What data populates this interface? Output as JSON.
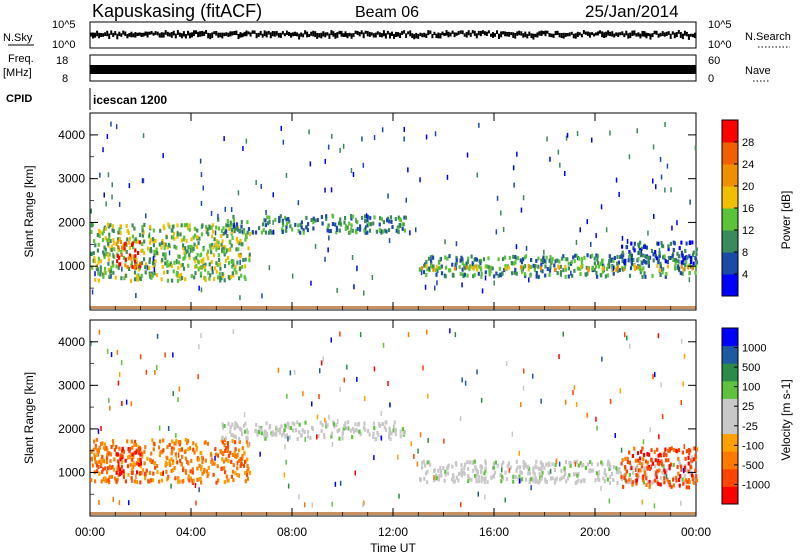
{
  "header": {
    "station": "Kapuskasing (fitACF)",
    "beam": "Beam 06",
    "date": "25/Jan/2014"
  },
  "strips": {
    "nsky_label": "N.Sky",
    "nsky_top": "10^5",
    "nsky_bottom": "10^0",
    "nsearch_label": "N.Search",
    "nsearch_top": "10^5",
    "nsearch_bottom": "10^0",
    "freq_label": "Freq.",
    "freq_unit": "[MHz]",
    "freq_top": "18",
    "freq_bottom": "8",
    "nave_label": "Nave",
    "nave_top": "60",
    "nave_bottom": "0",
    "cpid_label": "CPID",
    "cpid_value": "icescan 1200"
  },
  "colors": {
    "power": [
      "#0000ff",
      "#1c4aa8",
      "#3a8a5a",
      "#5cc23a",
      "#f0c000",
      "#f09000",
      "#f06000",
      "#ff0000"
    ],
    "velocity": [
      "#ff0000",
      "#ff4500",
      "#ff7800",
      "#ffa000",
      "#c8c8c8",
      "#c8c8c8",
      "#60c040",
      "#2e8a4a",
      "#1e5aa0",
      "#0000ff"
    ],
    "ground": "#c8c8c8"
  },
  "chart_data": [
    {
      "type": "heatmap",
      "title": "",
      "xlabel": "Time UT",
      "ylabel": "Slant Range [km]",
      "xlim": [
        "00:00",
        "24:00"
      ],
      "ylim": [
        0,
        4500
      ],
      "x_ticks": [
        "00:00",
        "04:00",
        "08:00",
        "12:00",
        "16:00",
        "20:00",
        "00:00"
      ],
      "y_ticks": [
        "1000",
        "2000",
        "3000",
        "4000"
      ],
      "colorbar_label": "Power [dB]",
      "colorbar_ticks": [
        "4",
        "8",
        "12",
        "16",
        "20",
        "24",
        "28"
      ],
      "colorbar_range": [
        0,
        30
      ],
      "features": [
        {
          "t_start": 0.0,
          "t_end": 6.3,
          "range_start": 700,
          "range_end": 2000,
          "power_dB": 14
        },
        {
          "t_start": 1.0,
          "t_end": 2.0,
          "range_start": 1000,
          "range_end": 1600,
          "power_dB": 28
        },
        {
          "t_start": 5.0,
          "t_end": 12.5,
          "range_start": 1800,
          "range_end": 2200,
          "power_dB": 12
        },
        {
          "t_start": 13.0,
          "t_end": 24.0,
          "range_start": 800,
          "range_end": 1300,
          "power_dB": 10
        },
        {
          "t_start": 13.0,
          "t_end": 24.0,
          "range_start": 950,
          "range_end": 1050,
          "power_dB": 20
        },
        {
          "t_start": 21.0,
          "t_end": 24.0,
          "range_start": 1100,
          "range_end": 1600,
          "power_dB": 8
        }
      ]
    },
    {
      "type": "heatmap",
      "title": "",
      "xlabel": "Time UT",
      "ylabel": "Slant Range [km]",
      "xlim": [
        "00:00",
        "24:00"
      ],
      "ylim": [
        0,
        4500
      ],
      "x_ticks": [
        "00:00",
        "04:00",
        "08:00",
        "12:00",
        "16:00",
        "20:00",
        "00:00"
      ],
      "y_ticks": [
        "1000",
        "2000",
        "3000",
        "4000"
      ],
      "colorbar_label": "Velocity [m s-1]",
      "colorbar_ticks": [
        "1000",
        "500",
        "100",
        "25",
        "-25",
        "-100",
        "-500",
        "-1000"
      ],
      "colorbar_range": [
        -1000,
        1000
      ],
      "features": [
        {
          "t_start": 0.0,
          "t_end": 6.3,
          "range_start": 800,
          "range_end": 1800,
          "velocity": -200
        },
        {
          "t_start": 1.0,
          "t_end": 2.0,
          "range_start": 1000,
          "range_end": 1600,
          "velocity": -600
        },
        {
          "t_start": 5.0,
          "t_end": 12.5,
          "range_start": 1800,
          "range_end": 2200,
          "velocity": 0
        },
        {
          "t_start": 13.0,
          "t_end": 24.0,
          "range_start": 800,
          "range_end": 1300,
          "velocity": 0
        },
        {
          "t_start": 21.0,
          "t_end": 24.0,
          "range_start": 700,
          "range_end": 1600,
          "velocity": -400
        }
      ]
    }
  ]
}
